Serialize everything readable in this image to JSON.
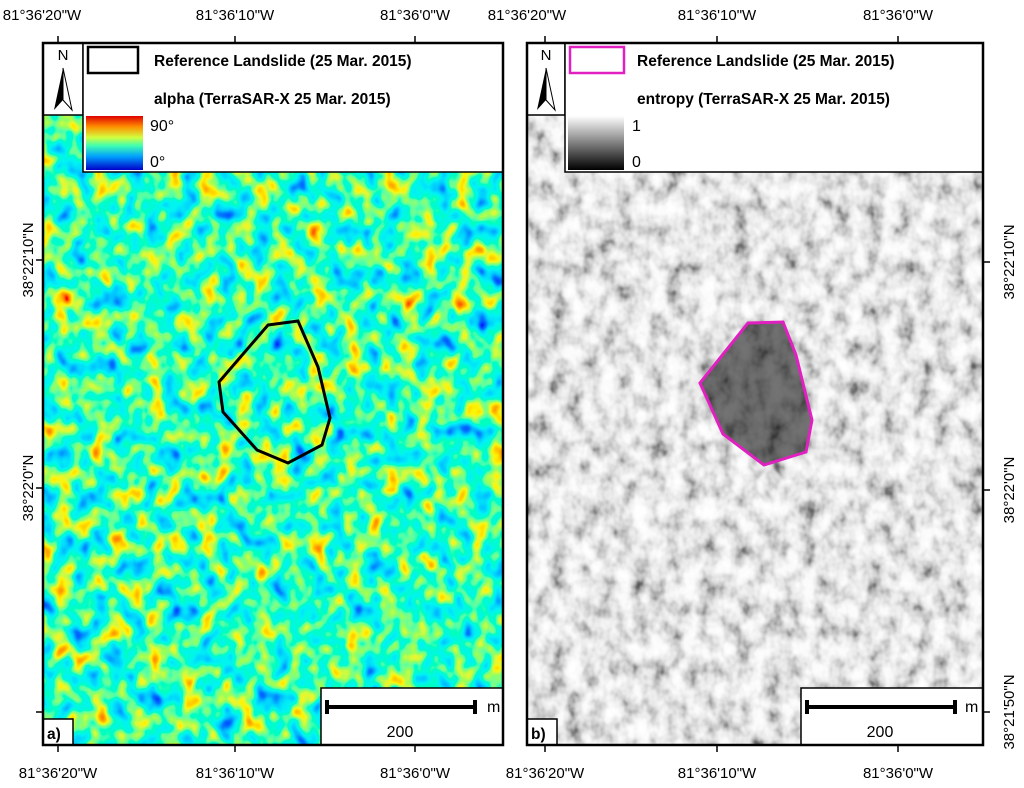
{
  "panels": [
    {
      "label": "a)",
      "north": "N",
      "legend": {
        "outline_label": "Reference Landslide (25 Mar. 2015)",
        "layer_label": "alpha (TerraSAR-X 25 Mar. 2015)",
        "scale_max": "90°",
        "scale_min": "0°"
      },
      "scalebar": {
        "value": "200",
        "unit": "m"
      },
      "lon_ticks": [
        "81°36'20\"W",
        "81°36'10\"W",
        "81°36'0\"W"
      ],
      "lat_ticks": [
        "38°22'10\"N",
        "38°22'0\"N"
      ]
    },
    {
      "label": "b)",
      "north": "N",
      "legend": {
        "outline_label": "Reference Landslide (25 Mar. 2015)",
        "layer_label": "entropy (TerraSAR-X 25 Mar. 2015)",
        "scale_max": "1",
        "scale_min": "0"
      },
      "scalebar": {
        "value": "200",
        "unit": "m"
      },
      "lon_ticks": [
        "81°36'20\"W",
        "81°36'10\"W",
        "81°36'0\"W"
      ],
      "lat_ticks": [
        "38°22'10\"N",
        "38°22'0\"N",
        "38°21'50\"N"
      ]
    }
  ]
}
